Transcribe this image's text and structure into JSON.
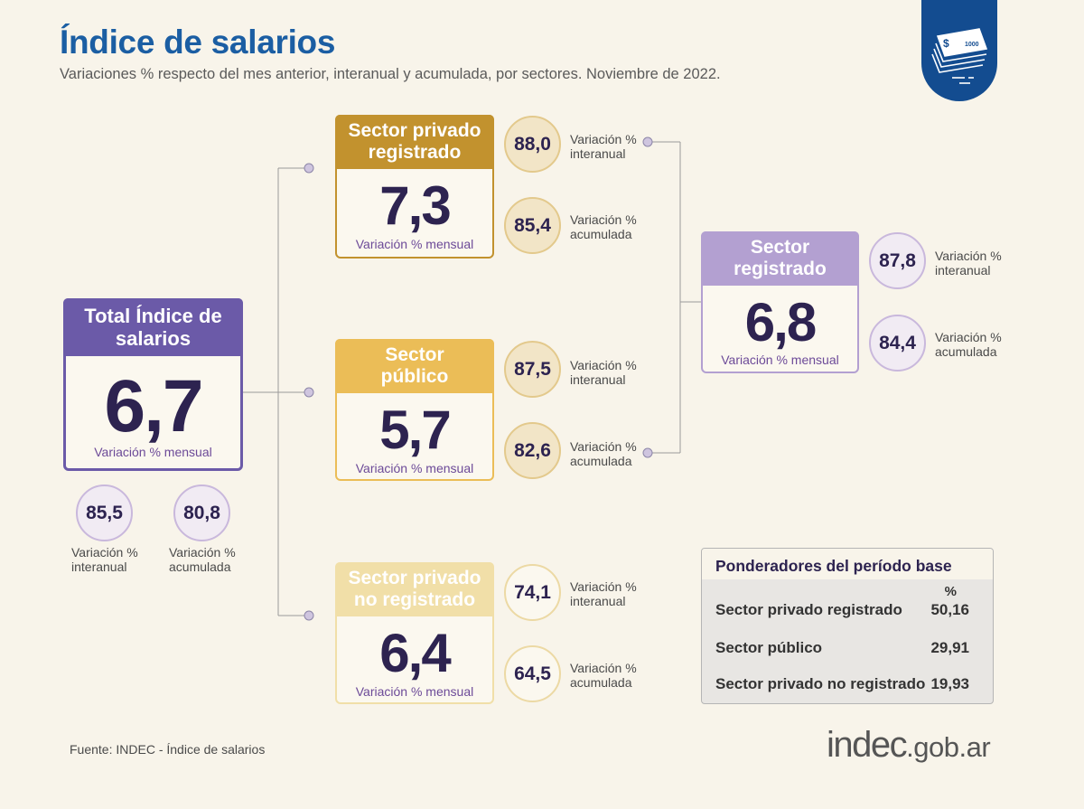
{
  "header": {
    "title": "Índice de salarios",
    "subtitle": "Variaciones % respecto del mes anterior, interanual y acumulada, por sectores. Noviembre de 2022."
  },
  "colors": {
    "title": "#1b5ea3",
    "total": "#6b5aa8",
    "privado_registrado": "#c2922e",
    "publico": "#ebbd57",
    "privado_no_registrado": "#f1dfa8",
    "sector_registrado": "#b3a0d1",
    "value_text": "#2d2350"
  },
  "icons": {
    "badge": "money-stack-icon"
  },
  "total": {
    "label": "Total Índice de salarios",
    "value": "6,7",
    "caption": "Variación % mensual",
    "interanual": "85,5",
    "interanual_label": "Variación % interanual",
    "acumulada": "80,8",
    "acumulada_label": "Variación % acumulada"
  },
  "privado_registrado": {
    "label": "Sector privado registrado",
    "value": "7,3",
    "caption": "Variación % mensual",
    "interanual": "88,0",
    "interanual_label": "Variación % interanual",
    "acumulada": "85,4",
    "acumulada_label": "Variación % acumulada"
  },
  "publico": {
    "label": "Sector público",
    "value": "5,7",
    "caption": "Variación % mensual",
    "interanual": "87,5",
    "interanual_label": "Variación % interanual",
    "acumulada": "82,6",
    "acumulada_label": "Variación % acumulada"
  },
  "privado_no_registrado": {
    "label": "Sector privado no registrado",
    "value": "6,4",
    "caption": "Variación % mensual",
    "interanual": "74,1",
    "interanual_label": "Variación % interanual",
    "acumulada": "64,5",
    "acumulada_label": "Variación % acumulada"
  },
  "sector_registrado": {
    "label": "Sector registrado",
    "value": "6,8",
    "caption": "Variación % mensual",
    "interanual": "87,8",
    "interanual_label": "Variación % interanual",
    "acumulada": "84,4",
    "acumulada_label": "Variación % acumulada"
  },
  "ponderadores": {
    "title": "Ponderadores del período base",
    "unit": "%",
    "rows": [
      {
        "name": "Sector privado registrado",
        "value": "50,16"
      },
      {
        "name": "Sector público",
        "value": "29,91"
      },
      {
        "name": "Sector privado no registrado",
        "value": "19,93"
      }
    ]
  },
  "footer": {
    "source": "Fuente: INDEC - Índice de salarios",
    "logo_main": "indec",
    "logo_suffix": ".gob.ar"
  }
}
